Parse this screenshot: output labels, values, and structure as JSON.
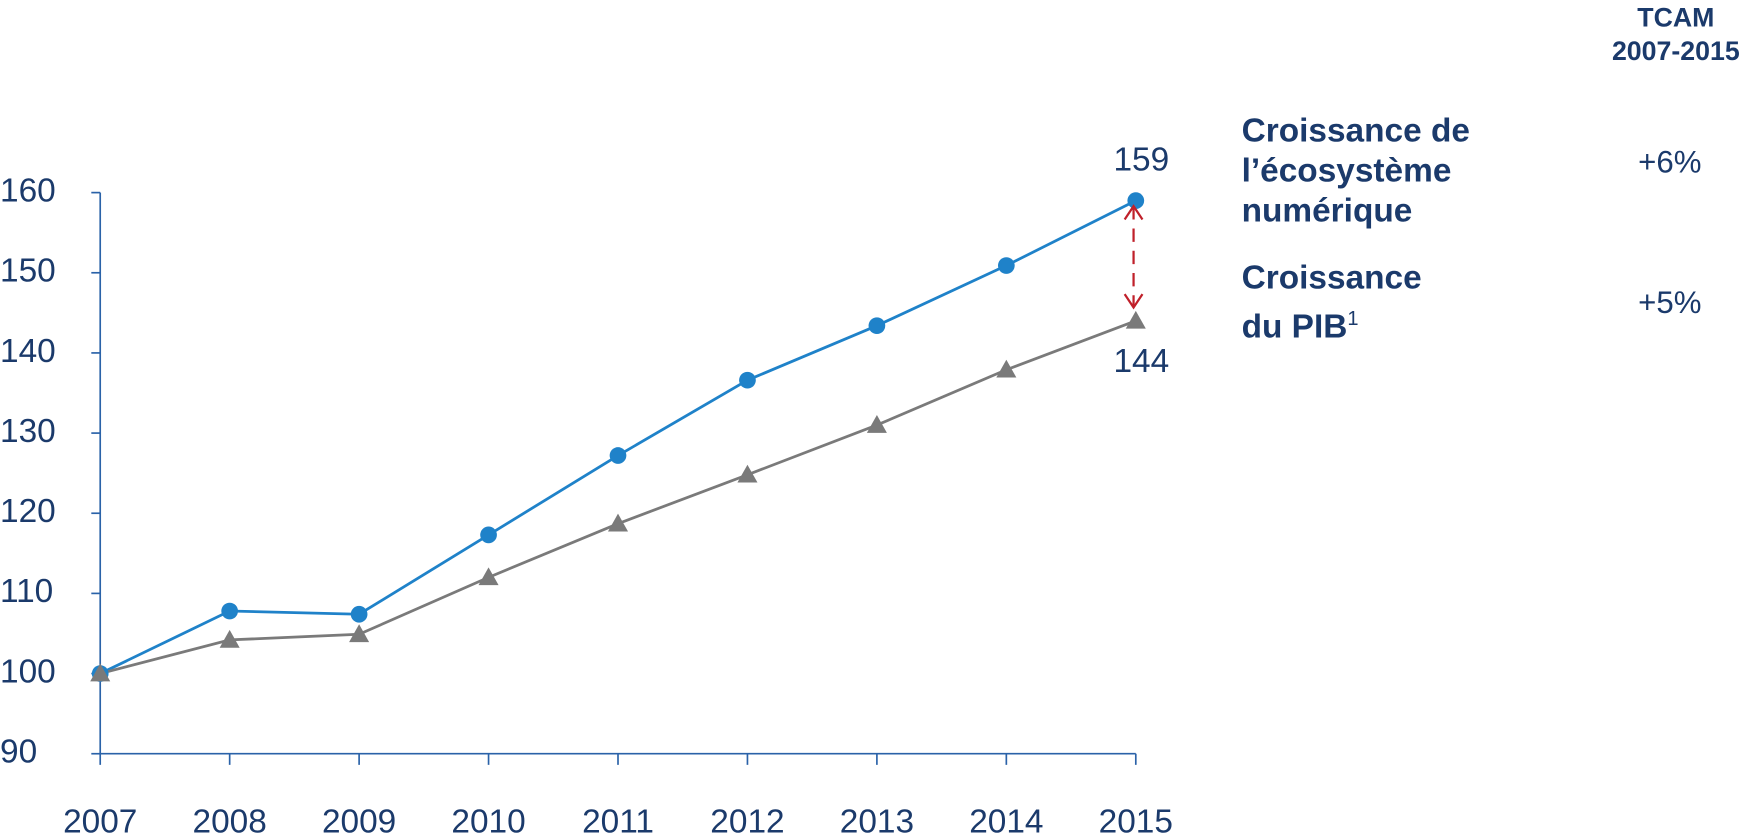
{
  "chart_data": {
    "type": "line",
    "categories": [
      "2007",
      "2008",
      "2009",
      "2010",
      "2011",
      "2012",
      "2013",
      "2014",
      "2015"
    ],
    "series": [
      {
        "name": "Croissance de l’écosystème numérique",
        "color": "#1f82c9",
        "marker": "circle",
        "values": [
          100,
          107.8,
          107.4,
          117.3,
          127.2,
          136.6,
          143.4,
          150.9,
          159
        ],
        "cagr": "+6%"
      },
      {
        "name": "Croissance du PIB",
        "note": "1",
        "color": "#7a7a7a",
        "marker": "triangle",
        "values": [
          100,
          104.2,
          104.9,
          112,
          118.7,
          124.8,
          131,
          137.9,
          144
        ],
        "cagr": "+5%"
      }
    ],
    "table_header": {
      "title": "TCAM",
      "period": "2007-2015"
    },
    "ylim": [
      90,
      160
    ],
    "yticks": [
      90,
      100,
      110,
      120,
      130,
      140,
      150,
      160
    ]
  }
}
